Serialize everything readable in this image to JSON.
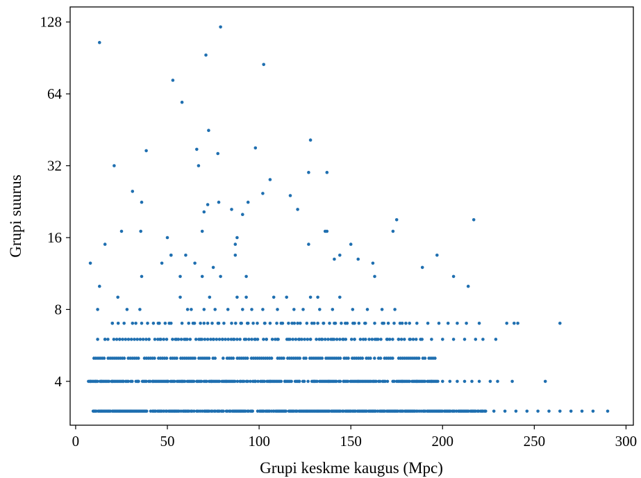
{
  "chart_data": {
    "type": "scatter",
    "title": "",
    "xlabel": "Grupi keskme kaugus (Mpc)",
    "ylabel": "Grupi suurus",
    "xlim": [
      -3,
      304
    ],
    "ylim": [
      2.62,
      148
    ],
    "yscale": "log2",
    "xticks": [
      0,
      50,
      100,
      150,
      200,
      250,
      300
    ],
    "xtick_labels": [
      "0",
      "50",
      "100",
      "150",
      "200",
      "250",
      "300"
    ],
    "yticks": [
      4,
      8,
      16,
      32,
      64,
      128
    ],
    "ytick_labels": [
      "4",
      "8",
      "16",
      "32",
      "64",
      "128"
    ],
    "grid": false,
    "color": "#1f6fb0",
    "series": [
      {
        "values_note": "",
        "x": [
          13,
          79,
          71,
          102.5,
          53,
          58,
          72.5,
          128,
          98,
          66,
          77.5,
          38.5,
          21,
          67,
          127,
          106,
          137,
          31,
          117,
          102,
          36,
          78,
          94,
          72,
          121,
          70,
          85,
          217,
          91,
          175,
          35.5,
          25,
          173,
          69,
          136,
          137,
          88,
          50,
          87,
          16,
          127,
          150,
          60,
          87,
          52,
          144,
          197,
          141,
          154,
          8,
          47,
          65,
          52,
          162,
          75,
          189,
          206,
          69,
          79,
          93,
          163,
          57,
          36,
          13,
          214,
          23,
          57,
          73,
          88,
          93,
          108,
          115,
          128,
          132,
          144,
          28,
          35,
          61,
          63,
          70,
          76,
          83,
          91,
          96,
          102,
          110,
          119,
          124,
          133,
          140,
          151,
          159,
          167,
          174,
          12,
          20,
          31,
          45,
          51,
          58,
          64,
          70,
          72,
          78,
          85,
          90,
          94,
          99,
          103,
          106,
          112,
          118,
          121,
          126,
          130,
          135,
          141,
          147,
          152,
          158,
          163,
          168,
          178,
          182,
          186,
          192,
          198,
          203,
          208,
          213,
          220,
          235,
          239,
          241,
          264,
          12,
          16,
          24,
          32,
          40,
          46,
          55,
          60,
          68,
          75,
          80,
          86,
          92,
          98,
          104,
          110,
          116,
          122,
          128,
          134,
          140,
          146,
          152,
          158,
          164,
          170,
          176,
          182,
          188,
          194,
          200,
          206,
          212,
          218,
          222,
          229,
          8,
          11,
          14,
          20,
          26,
          34,
          42,
          50,
          58,
          66,
          74,
          82,
          90,
          98,
          106,
          114,
          122,
          130,
          138,
          146,
          154,
          162,
          170,
          178,
          186,
          194,
          200,
          204,
          208,
          212,
          216,
          220,
          226,
          230,
          238,
          256,
          10,
          14,
          18,
          24,
          30,
          36,
          42,
          48,
          54,
          60,
          66,
          72,
          78,
          84,
          90,
          96,
          102,
          108,
          114,
          120,
          126,
          132,
          138,
          144,
          150,
          156,
          162,
          168,
          174,
          180,
          186,
          192,
          198,
          204,
          210,
          216,
          222,
          228,
          234,
          240,
          246,
          252,
          258,
          264,
          270,
          276,
          282,
          290
        ],
        "y": [
          105,
          122,
          93,
          85,
          73,
          59,
          45,
          41,
          38,
          37.5,
          36,
          37,
          32,
          32,
          30,
          28,
          30,
          25,
          24,
          24.5,
          22.5,
          22.5,
          22.5,
          22,
          21,
          20.5,
          21,
          19,
          20,
          19,
          17,
          17,
          17,
          17,
          17,
          17,
          16,
          16,
          15,
          15,
          15,
          15,
          13.5,
          13.5,
          13.5,
          13.5,
          13.5,
          13,
          13,
          12.5,
          12.5,
          12.5,
          13.5,
          12.5,
          12,
          12,
          11,
          11,
          11,
          11,
          11,
          11,
          11,
          10,
          10,
          9,
          9,
          9,
          9,
          9,
          9,
          9,
          9,
          9,
          9,
          8,
          8,
          8,
          8,
          8,
          8,
          8,
          8,
          8,
          8,
          8,
          8,
          8,
          8,
          8,
          8,
          8,
          8,
          8,
          8,
          7,
          7,
          7,
          7,
          7,
          7,
          7,
          7,
          7,
          7,
          7,
          7,
          7,
          7,
          7,
          7,
          7,
          7,
          7,
          7,
          7,
          7,
          7,
          7,
          7,
          7,
          7,
          7,
          7,
          7,
          7,
          7,
          7,
          7,
          7,
          7,
          7,
          7,
          7,
          7,
          6,
          6,
          6,
          6,
          6,
          6,
          6,
          6,
          6,
          6,
          6,
          6,
          6,
          6,
          6,
          6,
          6,
          6,
          6,
          6,
          6,
          6,
          6,
          6,
          6,
          6,
          6,
          6,
          6,
          6,
          6,
          6,
          6,
          6,
          6,
          6,
          4,
          4,
          4,
          4,
          4,
          4,
          4,
          4,
          4,
          4,
          4,
          4,
          4,
          4,
          4,
          4,
          4,
          4,
          4,
          4,
          4,
          4,
          4,
          4,
          4,
          4,
          4,
          4,
          4,
          4,
          4,
          4,
          4,
          4,
          4,
          4,
          3,
          3,
          3,
          3,
          3,
          3,
          3,
          3,
          3,
          3,
          3,
          3,
          3,
          3,
          3,
          3,
          3,
          3,
          3,
          3,
          3,
          3,
          3,
          3,
          3,
          3,
          3,
          3,
          3,
          3,
          3,
          3,
          3,
          3,
          3,
          3,
          3,
          3,
          3,
          3,
          3,
          3,
          3,
          3,
          3,
          3,
          3,
          3
        ]
      }
    ],
    "dense_rows": [
      {
        "y": 3,
        "x_start": 9,
        "x_end": 224,
        "step": 0.55
      },
      {
        "y": 4,
        "x_start": 7,
        "x_end": 198,
        "step": 0.7
      },
      {
        "y": 5,
        "x_start": 10,
        "x_end": 196,
        "step": 1.1
      },
      {
        "y": 6,
        "x_start": 16,
        "x_end": 190,
        "step": 1.6
      },
      {
        "y": 7,
        "x_start": 20,
        "x_end": 180,
        "step": 3.2
      }
    ]
  }
}
